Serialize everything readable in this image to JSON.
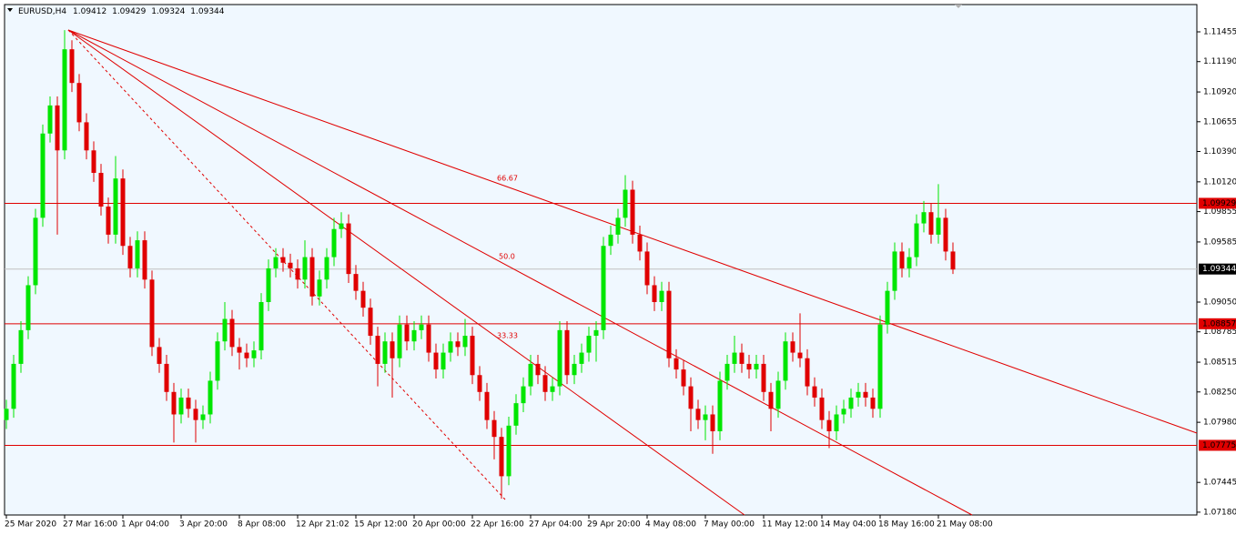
{
  "chart_data": {
    "type": "candlestick",
    "symbol": "EURUSD,H4",
    "ohlc": [
      1.09412,
      1.09429,
      1.09324,
      1.09344
    ],
    "categories": [
      "25 Mar 2020",
      null,
      null,
      null,
      null,
      null,
      null,
      null,
      "27 Mar 16:00",
      null,
      null,
      null,
      null,
      null,
      null,
      null,
      "1 Apr 04:00",
      null,
      null,
      null,
      null,
      null,
      null,
      null,
      "3 Apr 20:00",
      null,
      null,
      null,
      null,
      null,
      null,
      null,
      "8 Apr 08:00",
      null,
      null,
      null,
      null,
      null,
      null,
      null,
      "12 Apr 21:02",
      null,
      null,
      null,
      null,
      null,
      null,
      null,
      "15 Apr 12:00",
      null,
      null,
      null,
      null,
      null,
      null,
      null,
      "20 Apr 00:00",
      null,
      null,
      null,
      null,
      null,
      null,
      null,
      "22 Apr 16:00",
      null,
      null,
      null,
      null,
      null,
      null,
      null,
      "27 Apr 04:00",
      null,
      null,
      null,
      null,
      null,
      null,
      null,
      "29 Apr 20:00",
      null,
      null,
      null,
      null,
      null,
      null,
      null,
      "4 May 08:00",
      null,
      null,
      null,
      null,
      null,
      null,
      null,
      "7 May 00:00",
      null,
      null,
      null,
      null,
      null,
      null,
      null,
      "11 May 12:00",
      null,
      null,
      null,
      null,
      null,
      null,
      null,
      "14 May 04:00",
      null,
      null,
      null,
      null,
      null,
      null,
      null,
      "18 May 16:00",
      null,
      null,
      null,
      null,
      null,
      null,
      null,
      "21 May 08:00",
      null,
      null
    ],
    "open": [
      1.08,
      1.081,
      1.085,
      1.088,
      1.092,
      1.098,
      1.1055,
      1.108,
      1.104,
      1.113,
      1.11,
      1.1065,
      1.104,
      1.102,
      1.099,
      1.0965,
      1.1015,
      1.0955,
      1.0935,
      1.096,
      1.0925,
      1.0865,
      1.085,
      1.0825,
      1.0805,
      1.082,
      1.081,
      1.08,
      1.0805,
      1.0835,
      1.087,
      1.089,
      1.0865,
      1.086,
      1.0855,
      1.0862,
      1.0905,
      1.0935,
      1.0945,
      1.094,
      1.0935,
      1.0925,
      1.0945,
      1.091,
      1.0925,
      1.0945,
      1.097,
      1.0975,
      1.093,
      1.0915,
      1.09,
      1.0875,
      1.085,
      1.087,
      1.0855,
      1.0885,
      1.087,
      1.088,
      1.0885,
      1.086,
      1.0845,
      1.086,
      1.087,
      1.0865,
      1.0875,
      1.084,
      1.0825,
      1.08,
      1.0785,
      1.075,
      1.0795,
      1.0815,
      1.083,
      1.085,
      1.084,
      1.0825,
      1.083,
      1.088,
      1.084,
      1.085,
      1.086,
      1.0875,
      1.088,
      1.0955,
      1.0965,
      1.098,
      1.1005,
      1.0965,
      1.095,
      1.092,
      1.0905,
      1.0915,
      1.0855,
      1.0845,
      1.083,
      1.081,
      1.08,
      1.0805,
      1.079,
      1.0835,
      1.085,
      1.086,
      1.085,
      1.0845,
      1.085,
      1.0825,
      1.081,
      1.0835,
      1.087,
      1.086,
      1.0855,
      1.083,
      1.082,
      1.08,
      1.079,
      1.0805,
      1.081,
      1.082,
      1.0825,
      1.082,
      1.081,
      1.0885,
      1.0915,
      1.095,
      1.0935,
      1.0945,
      1.0975,
      1.0985,
      1.0965,
      1.098,
      1.095
    ],
    "high": [
      1.0818,
      1.0858,
      1.0888,
      1.0928,
      1.0988,
      1.1063,
      1.1088,
      1.1088,
      1.1147,
      1.1138,
      1.1108,
      1.1073,
      1.1048,
      1.1028,
      1.0998,
      1.1035,
      1.1023,
      1.0963,
      1.0968,
      1.0968,
      1.0933,
      1.0873,
      1.0858,
      1.0833,
      1.0828,
      1.0828,
      1.0818,
      1.0813,
      1.0843,
      1.0878,
      1.0905,
      1.0898,
      1.0873,
      1.0868,
      1.087,
      1.0913,
      1.0943,
      1.0953,
      1.0953,
      1.0948,
      1.0943,
      1.096,
      1.0953,
      1.0933,
      1.0953,
      1.098,
      1.0985,
      1.0983,
      1.0938,
      1.0923,
      1.0908,
      1.0883,
      1.0878,
      1.0878,
      1.0893,
      1.0893,
      1.0888,
      1.0893,
      1.0893,
      1.0868,
      1.0868,
      1.0878,
      1.0878,
      1.089,
      1.0883,
      1.0848,
      1.0833,
      1.0808,
      1.0793,
      1.0803,
      1.0823,
      1.0838,
      1.0858,
      1.0858,
      1.0848,
      1.0838,
      1.0888,
      1.0888,
      1.0858,
      1.0868,
      1.0883,
      1.0888,
      1.0963,
      1.0973,
      1.0988,
      1.1018,
      1.1013,
      1.0973,
      1.0958,
      1.0928,
      1.0923,
      1.0923,
      1.0863,
      1.0853,
      1.0838,
      1.0818,
      1.0813,
      1.0813,
      1.0843,
      1.0858,
      1.0875,
      1.0868,
      1.0858,
      1.0858,
      1.0858,
      1.0833,
      1.0843,
      1.0878,
      1.0878,
      1.0895,
      1.0863,
      1.0838,
      1.0828,
      1.0808,
      1.0813,
      1.0818,
      1.0828,
      1.0833,
      1.0833,
      1.0828,
      1.0893,
      1.0923,
      1.0958,
      1.0958,
      1.0953,
      1.0983,
      1.0995,
      1.0993,
      1.101,
      1.0988,
      1.0958
    ],
    "low": [
      1.0792,
      1.0802,
      1.0842,
      1.0872,
      1.0912,
      1.0972,
      1.1047,
      1.0965,
      1.1032,
      1.1092,
      1.1057,
      1.1032,
      1.1012,
      1.0982,
      1.0957,
      1.0957,
      1.0947,
      1.0927,
      1.0927,
      1.0917,
      1.0857,
      1.0842,
      1.0817,
      1.078,
      1.0797,
      1.0802,
      1.078,
      1.0792,
      1.0797,
      1.0827,
      1.0862,
      1.0857,
      1.0845,
      1.0847,
      1.0847,
      1.0854,
      1.0897,
      1.0927,
      1.0932,
      1.0927,
      1.0917,
      1.0917,
      1.0902,
      1.0902,
      1.0917,
      1.0937,
      1.0962,
      1.0922,
      1.0907,
      1.0892,
      1.0867,
      1.083,
      1.0842,
      1.082,
      1.0847,
      1.0862,
      1.0862,
      1.0872,
      1.0852,
      1.0837,
      1.0837,
      1.0852,
      1.0857,
      1.0857,
      1.0832,
      1.0817,
      1.0792,
      1.0765,
      1.073,
      1.0742,
      1.0787,
      1.0807,
      1.0822,
      1.0832,
      1.0817,
      1.0817,
      1.0822,
      1.0832,
      1.0832,
      1.0842,
      1.0852,
      1.0852,
      1.0872,
      1.0947,
      1.0957,
      1.0972,
      1.0957,
      1.0942,
      1.0912,
      1.0897,
      1.0897,
      1.0847,
      1.0837,
      1.0822,
      1.079,
      1.0792,
      1.0782,
      1.077,
      1.0782,
      1.0827,
      1.0842,
      1.0842,
      1.0837,
      1.0837,
      1.0817,
      1.079,
      1.0802,
      1.0827,
      1.0852,
      1.0847,
      1.0822,
      1.0812,
      1.0792,
      1.0775,
      1.0782,
      1.0797,
      1.0802,
      1.0812,
      1.0812,
      1.0802,
      1.0802,
      1.0877,
      1.0907,
      1.0927,
      1.0927,
      1.0937,
      1.0967,
      1.0957,
      1.0957,
      1.0942,
      1.093
    ],
    "close": [
      1.081,
      1.085,
      1.088,
      1.092,
      1.098,
      1.1055,
      1.108,
      1.104,
      1.113,
      1.11,
      1.1065,
      1.104,
      1.102,
      1.099,
      1.0965,
      1.1015,
      1.0955,
      1.0935,
      1.096,
      1.0925,
      1.0865,
      1.085,
      1.0825,
      1.0805,
      1.082,
      1.081,
      1.08,
      1.0805,
      1.0835,
      1.087,
      1.089,
      1.0865,
      1.086,
      1.0855,
      1.0862,
      1.0905,
      1.0935,
      1.0945,
      1.094,
      1.0935,
      1.0925,
      1.0945,
      1.091,
      1.0925,
      1.0945,
      1.097,
      1.0975,
      1.093,
      1.0915,
      1.09,
      1.0875,
      1.085,
      1.087,
      1.0855,
      1.0885,
      1.087,
      1.088,
      1.0885,
      1.086,
      1.0845,
      1.086,
      1.087,
      1.0865,
      1.0875,
      1.084,
      1.0825,
      1.08,
      1.0785,
      1.075,
      1.0795,
      1.0815,
      1.083,
      1.085,
      1.084,
      1.0825,
      1.083,
      1.088,
      1.084,
      1.085,
      1.086,
      1.0875,
      1.088,
      1.0955,
      1.0965,
      1.098,
      1.1005,
      1.0965,
      1.095,
      1.092,
      1.0905,
      1.0915,
      1.0855,
      1.0845,
      1.083,
      1.081,
      1.08,
      1.0805,
      1.079,
      1.0835,
      1.085,
      1.086,
      1.085,
      1.0845,
      1.085,
      1.0825,
      1.081,
      1.0835,
      1.087,
      1.086,
      1.0855,
      1.083,
      1.082,
      1.08,
      1.079,
      1.0805,
      1.081,
      1.082,
      1.0825,
      1.082,
      1.081,
      1.0885,
      1.0915,
      1.095,
      1.0935,
      1.0945,
      1.0975,
      1.0985,
      1.0965,
      1.098,
      1.095,
      1.0934
    ],
    "up_color": "#00e600",
    "down_color": "#e00000",
    "ylim": [
      1.07155,
      1.11698
    ],
    "yticks": [
      1.11455,
      {
        "value": 1.1119,
        "label": "1.11190"
      },
      {
        "value": 1.1092,
        "label": "1.10920"
      },
      1.10655,
      {
        "value": 1.1039,
        "label": "1.10390"
      },
      {
        "value": 1.1012,
        "label": "1.10120"
      },
      1.09855,
      1.09585,
      {
        "value": 1.0905,
        "label": "1.09050"
      },
      1.08785,
      1.08515,
      {
        "value": 1.0825,
        "label": "1.08250"
      },
      {
        "value": 1.0798,
        "label": "1.07980"
      },
      1.07445,
      {
        "value": 1.0718,
        "label": "1.07180"
      }
    ],
    "levels": [
      {
        "value": 1.09929,
        "color": "#e00000"
      },
      {
        "value": 1.08857,
        "color": "#e00000"
      },
      {
        "value": 1.07775,
        "color": "#e00000"
      }
    ],
    "current_price": {
      "value": 1.09344,
      "color": "#c0c0c0"
    },
    "fan_levels": [
      "66.67",
      "50.0",
      "33.33"
    ]
  }
}
